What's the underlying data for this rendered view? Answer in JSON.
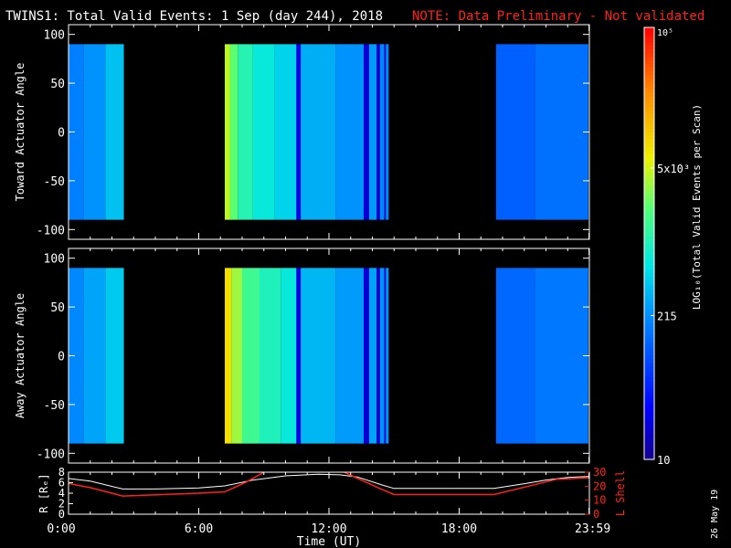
{
  "header": {
    "title": "TWINS1: Total Valid Events:  1 Sep (day 244), 2018",
    "note": "NOTE: Data Preliminary - Not validated"
  },
  "footer": {
    "date_stamp": "26 May 19"
  },
  "colors": {
    "note": "#ff2020",
    "lshell": "#ff2020",
    "radius": "#ffffff",
    "background": "#000000"
  },
  "chart_data": [
    {
      "type": "heatmap",
      "ylabel": "Toward Actuator Angle",
      "ylim": [
        -110,
        110
      ],
      "yticks": [
        "100",
        "50",
        "0",
        "-50",
        "-100"
      ],
      "xlim_hours": [
        0,
        24
      ],
      "data_extent_angle": [
        -90,
        90
      ],
      "data_blocks": [
        {
          "start": 0.0,
          "end": 0.7,
          "log_value": 2.25
        },
        {
          "start": 0.7,
          "end": 1.7,
          "log_value": 2.35
        },
        {
          "start": 1.7,
          "end": 2.55,
          "log_value": 2.6
        },
        {
          "start": 7.2,
          "end": 7.45,
          "log_value": 3.65
        },
        {
          "start": 7.45,
          "end": 7.8,
          "log_value": 3.35
        },
        {
          "start": 7.8,
          "end": 8.5,
          "log_value": 3.05
        },
        {
          "start": 8.5,
          "end": 9.5,
          "log_value": 2.85
        },
        {
          "start": 9.5,
          "end": 10.5,
          "log_value": 2.7
        },
        {
          "start": 10.5,
          "end": 10.7,
          "log_value": 1.4
        },
        {
          "start": 10.7,
          "end": 12.3,
          "log_value": 2.5
        },
        {
          "start": 12.3,
          "end": 13.6,
          "log_value": 2.35
        },
        {
          "start": 13.6,
          "end": 13.85,
          "log_value": 1.3
        },
        {
          "start": 13.85,
          "end": 14.2,
          "log_value": 2.4
        },
        {
          "start": 14.2,
          "end": 14.35,
          "log_value": 1.3
        },
        {
          "start": 14.35,
          "end": 14.55,
          "log_value": 2.3
        },
        {
          "start": 14.55,
          "end": 14.62,
          "log_value": 1.3
        },
        {
          "start": 14.62,
          "end": 14.75,
          "log_value": 2.3
        },
        {
          "start": 19.7,
          "end": 21.5,
          "log_value": 2.05
        },
        {
          "start": 21.5,
          "end": 23.95,
          "log_value": 2.15
        }
      ]
    },
    {
      "type": "heatmap",
      "ylabel": "Away Actuator Angle",
      "ylim": [
        -110,
        110
      ],
      "yticks": [
        "100",
        "50",
        "0",
        "-50",
        "-100"
      ],
      "xlim_hours": [
        0,
        24
      ],
      "data_extent_angle": [
        -90,
        90
      ],
      "data_blocks": [
        {
          "start": 0.0,
          "end": 0.7,
          "log_value": 2.3
        },
        {
          "start": 0.7,
          "end": 1.7,
          "log_value": 2.45
        },
        {
          "start": 1.7,
          "end": 2.55,
          "log_value": 2.65
        },
        {
          "start": 7.2,
          "end": 7.5,
          "log_value": 3.9
        },
        {
          "start": 7.5,
          "end": 8.0,
          "log_value": 3.55
        },
        {
          "start": 8.0,
          "end": 8.8,
          "log_value": 3.2
        },
        {
          "start": 8.8,
          "end": 9.8,
          "log_value": 3.0
        },
        {
          "start": 9.8,
          "end": 10.5,
          "log_value": 2.85
        },
        {
          "start": 10.5,
          "end": 10.7,
          "log_value": 1.4
        },
        {
          "start": 10.7,
          "end": 12.3,
          "log_value": 2.55
        },
        {
          "start": 12.3,
          "end": 13.6,
          "log_value": 2.4
        },
        {
          "start": 13.6,
          "end": 13.85,
          "log_value": 1.3
        },
        {
          "start": 13.85,
          "end": 14.2,
          "log_value": 2.45
        },
        {
          "start": 14.2,
          "end": 14.35,
          "log_value": 1.3
        },
        {
          "start": 14.35,
          "end": 14.55,
          "log_value": 2.35
        },
        {
          "start": 14.55,
          "end": 14.62,
          "log_value": 1.3
        },
        {
          "start": 14.62,
          "end": 14.75,
          "log_value": 2.35
        },
        {
          "start": 19.7,
          "end": 21.5,
          "log_value": 2.1
        },
        {
          "start": 21.5,
          "end": 23.95,
          "log_value": 2.2
        }
      ]
    },
    {
      "type": "line",
      "xlabel": "Time (UT)",
      "xticks": [
        {
          "hour": 0,
          "label": "0:00"
        },
        {
          "hour": 6,
          "label": "6:00"
        },
        {
          "hour": 12,
          "label": "12:00"
        },
        {
          "hour": 18,
          "label": "18:00"
        },
        {
          "hour": 23.983,
          "label": "23:59"
        }
      ],
      "left_axis": {
        "label": "R [Rₑ]",
        "ylim": [
          0,
          8
        ],
        "ticks": [
          "8",
          "6",
          "4",
          "2",
          "0"
        ]
      },
      "right_axis": {
        "label": "L Shell",
        "ylim": [
          0,
          30
        ],
        "ticks": [
          "30",
          "20",
          "10",
          "0"
        ]
      },
      "series": [
        {
          "axis": "left",
          "color": "#ffffff",
          "x": [
            0,
            1,
            2.5,
            4,
            6,
            7.2,
            8.5,
            10,
            11.5,
            12.5,
            13.3,
            14.5,
            15,
            17,
            19.6,
            21,
            22,
            23,
            23.98
          ],
          "y": [
            6.8,
            6.3,
            4.8,
            4.8,
            5.0,
            5.4,
            6.5,
            7.3,
            7.6,
            7.5,
            7.1,
            5.5,
            4.9,
            4.9,
            4.9,
            5.8,
            6.5,
            7.0,
            7.2
          ]
        },
        {
          "axis": "right",
          "color": "#ff2020",
          "x": [
            0,
            1,
            2.5,
            6,
            7.2,
            8.2,
            9.0,
            9.4,
            12.2,
            12.7,
            14.4,
            15.0,
            19.6,
            21.2,
            22.5,
            23.98
          ],
          "y": [
            22,
            19,
            13,
            15,
            16,
            23,
            30,
            34,
            34,
            30,
            18,
            14,
            14,
            20,
            25,
            26
          ]
        }
      ]
    }
  ],
  "colorbar": {
    "label": "LOG₁₀(Total Valid Events per Scan)",
    "tick_labels": [
      "10⁵",
      "5x10³",
      "215",
      "10"
    ],
    "tick_log_values": [
      5,
      3.699,
      2.332,
      1
    ],
    "range_log": [
      1,
      5
    ]
  }
}
